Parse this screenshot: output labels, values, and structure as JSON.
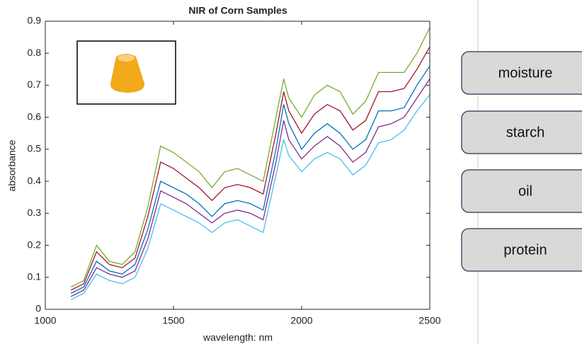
{
  "chart_data": {
    "type": "line",
    "title": "NIR of Corn Samples",
    "x_label": "wavelength: nm",
    "y_label": "absorbance",
    "x": [
      1100,
      1150,
      1200,
      1250,
      1300,
      1350,
      1400,
      1450,
      1500,
      1550,
      1600,
      1650,
      1700,
      1750,
      1800,
      1850,
      1900,
      1930,
      1950,
      2000,
      2050,
      2100,
      2150,
      2200,
      2250,
      2300,
      2350,
      2400,
      2450,
      2500
    ],
    "series": [
      {
        "color": "#77ac30",
        "values": [
          0.07,
          0.09,
          0.2,
          0.15,
          0.14,
          0.18,
          0.32,
          0.51,
          0.49,
          0.46,
          0.43,
          0.38,
          0.43,
          0.44,
          0.42,
          0.4,
          0.6,
          0.72,
          0.66,
          0.6,
          0.67,
          0.7,
          0.68,
          0.61,
          0.65,
          0.74,
          0.74,
          0.74,
          0.8,
          0.88
        ]
      },
      {
        "color": "#a2142f",
        "values": [
          0.06,
          0.08,
          0.18,
          0.14,
          0.13,
          0.16,
          0.29,
          0.46,
          0.44,
          0.41,
          0.38,
          0.34,
          0.38,
          0.39,
          0.38,
          0.36,
          0.55,
          0.68,
          0.62,
          0.55,
          0.61,
          0.64,
          0.62,
          0.56,
          0.59,
          0.68,
          0.68,
          0.69,
          0.75,
          0.82
        ]
      },
      {
        "color": "#0072bd",
        "values": [
          0.05,
          0.07,
          0.15,
          0.12,
          0.11,
          0.14,
          0.25,
          0.4,
          0.38,
          0.36,
          0.33,
          0.29,
          0.33,
          0.34,
          0.33,
          0.31,
          0.5,
          0.64,
          0.58,
          0.5,
          0.55,
          0.58,
          0.55,
          0.5,
          0.53,
          0.62,
          0.62,
          0.63,
          0.7,
          0.76
        ]
      },
      {
        "color": "#7e2f8e",
        "values": [
          0.04,
          0.06,
          0.13,
          0.11,
          0.1,
          0.12,
          0.22,
          0.37,
          0.35,
          0.33,
          0.3,
          0.27,
          0.3,
          0.31,
          0.3,
          0.28,
          0.46,
          0.59,
          0.53,
          0.47,
          0.51,
          0.54,
          0.51,
          0.46,
          0.49,
          0.57,
          0.58,
          0.6,
          0.66,
          0.72
        ]
      },
      {
        "color": "#4dbeee",
        "values": [
          0.03,
          0.05,
          0.11,
          0.09,
          0.08,
          0.1,
          0.19,
          0.33,
          0.31,
          0.29,
          0.27,
          0.24,
          0.27,
          0.28,
          0.26,
          0.24,
          0.42,
          0.53,
          0.48,
          0.43,
          0.47,
          0.49,
          0.47,
          0.42,
          0.45,
          0.52,
          0.53,
          0.56,
          0.62,
          0.67
        ]
      }
    ],
    "xlim": [
      1000,
      2500
    ],
    "ylim": [
      0,
      0.9
    ],
    "xticks": [
      1000,
      1500,
      2000,
      2500
    ],
    "yticks": [
      0,
      0.1,
      0.2,
      0.3,
      0.4,
      0.5,
      0.6,
      0.7,
      0.8,
      0.9
    ],
    "grid": false
  },
  "buttons": [
    "moisture",
    "starch",
    "oil",
    "protein"
  ]
}
